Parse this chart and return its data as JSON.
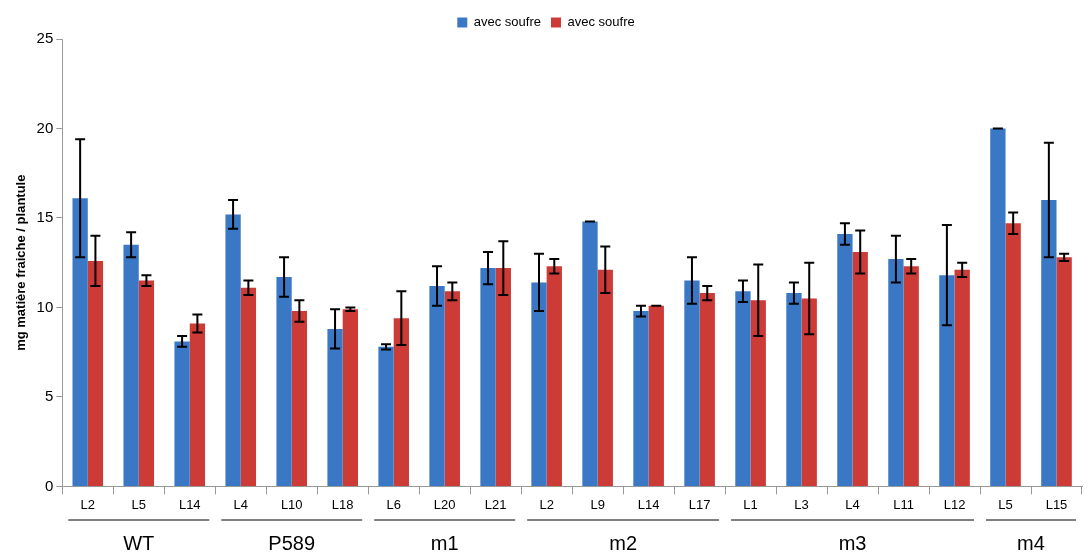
{
  "chart_data": {
    "type": "bar",
    "ylabel": "mg matière fraiche / plantule",
    "categories": [
      "L2",
      "L5",
      "L14",
      "L4",
      "L10",
      "L18",
      "L6",
      "L20",
      "L21",
      "L2",
      "L9",
      "L14",
      "L17",
      "L1",
      "L3",
      "L4",
      "L11",
      "L12",
      "L5",
      "L15"
    ],
    "series": [
      {
        "name": "avec soufre",
        "color": "#3a78c6",
        "values": [
          16.1,
          13.5,
          8.1,
          15.2,
          11.7,
          8.8,
          7.8,
          11.2,
          12.2,
          11.4,
          14.8,
          9.8,
          11.5,
          10.9,
          10.8,
          14.1,
          12.7,
          11.8,
          20.0,
          16.0
        ],
        "errors": [
          3.3,
          0.7,
          0.3,
          0.8,
          1.1,
          1.1,
          0.15,
          1.1,
          0.9,
          1.6,
          0,
          0.3,
          1.3,
          0.6,
          0.6,
          0.6,
          1.3,
          2.8,
          0,
          3.2
        ]
      },
      {
        "name": "avec soufre",
        "color": "#cc3b36",
        "values": [
          12.6,
          11.5,
          9.1,
          11.1,
          9.8,
          9.9,
          9.4,
          10.9,
          12.2,
          12.3,
          12.1,
          10.1,
          10.8,
          10.4,
          10.5,
          13.1,
          12.3,
          12.1,
          14.7,
          12.8
        ],
        "errors": [
          1.4,
          0.3,
          0.5,
          0.4,
          0.6,
          0.1,
          1.5,
          0.5,
          1.5,
          0.4,
          1.3,
          0,
          0.4,
          2.0,
          2.0,
          1.2,
          0.4,
          0.4,
          0.6,
          0.2
        ]
      }
    ],
    "annotations": [
      "WT",
      "P589",
      "m1",
      "m2",
      "m3",
      "m4"
    ],
    "ylim": [
      0,
      25
    ],
    "yticks": [
      0,
      5,
      10,
      15,
      20,
      25
    ],
    "grid": false,
    "legend": "top"
  }
}
